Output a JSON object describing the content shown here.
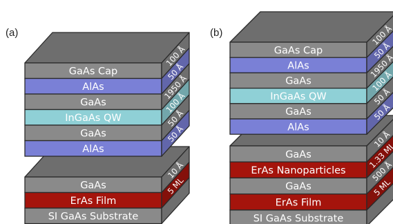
{
  "colors": {
    "gray": "#8a8a8a",
    "blue": "#7a80d6",
    "cyan": "#8fd0d6",
    "red": "#a5140c",
    "top": "#6e6e6e",
    "edge": "#2a2a2a"
  },
  "panels": [
    {
      "label": "(a)",
      "blocks": [
        {
          "layers": [
            {
              "name": "GaAs Cap",
              "thickness": "100 Å",
              "material": "gray"
            },
            {
              "name": "AlAs",
              "thickness": "50 Å",
              "material": "blue"
            },
            {
              "name": "GaAs",
              "thickness": "1950 Å",
              "material": "gray"
            },
            {
              "name": "InGaAs QW",
              "thickness": "100 Å",
              "material": "cyan"
            },
            {
              "name": "GaAs",
              "thickness": "50 Å",
              "material": "gray"
            },
            {
              "name": "AlAs",
              "thickness": "50 Å",
              "material": "blue"
            }
          ]
        },
        {
          "layers": [
            {
              "name": "GaAs",
              "thickness": "10 Å",
              "material": "gray"
            },
            {
              "name": "ErAs Film",
              "thickness": "5 ML",
              "material": "red"
            },
            {
              "name": "SI GaAs Substrate",
              "thickness": "",
              "material": "gray"
            }
          ]
        }
      ]
    },
    {
      "label": "(b)",
      "blocks": [
        {
          "layers": [
            {
              "name": "GaAs Cap",
              "thickness": "100 Å",
              "material": "gray"
            },
            {
              "name": "AlAs",
              "thickness": "50 Å",
              "material": "blue"
            },
            {
              "name": "GaAs",
              "thickness": "1950 Å",
              "material": "gray"
            },
            {
              "name": "InGaAs QW",
              "thickness": "100 Å",
              "material": "cyan"
            },
            {
              "name": "GaAs",
              "thickness": "50 Å",
              "material": "gray"
            },
            {
              "name": "AlAs",
              "thickness": "50 Å",
              "material": "blue"
            }
          ]
        },
        {
          "layers": [
            {
              "name": "GaAs",
              "thickness": "10 Å",
              "material": "gray"
            },
            {
              "name": "ErAs Nanoparticles",
              "thickness": "1.33 ML",
              "material": "red"
            },
            {
              "name": "GaAs",
              "thickness": "500 Å",
              "material": "gray"
            },
            {
              "name": "ErAs Film",
              "thickness": "5 ML",
              "material": "red"
            },
            {
              "name": "SI GaAs Substrate",
              "thickness": "",
              "material": "gray"
            }
          ]
        }
      ]
    }
  ]
}
